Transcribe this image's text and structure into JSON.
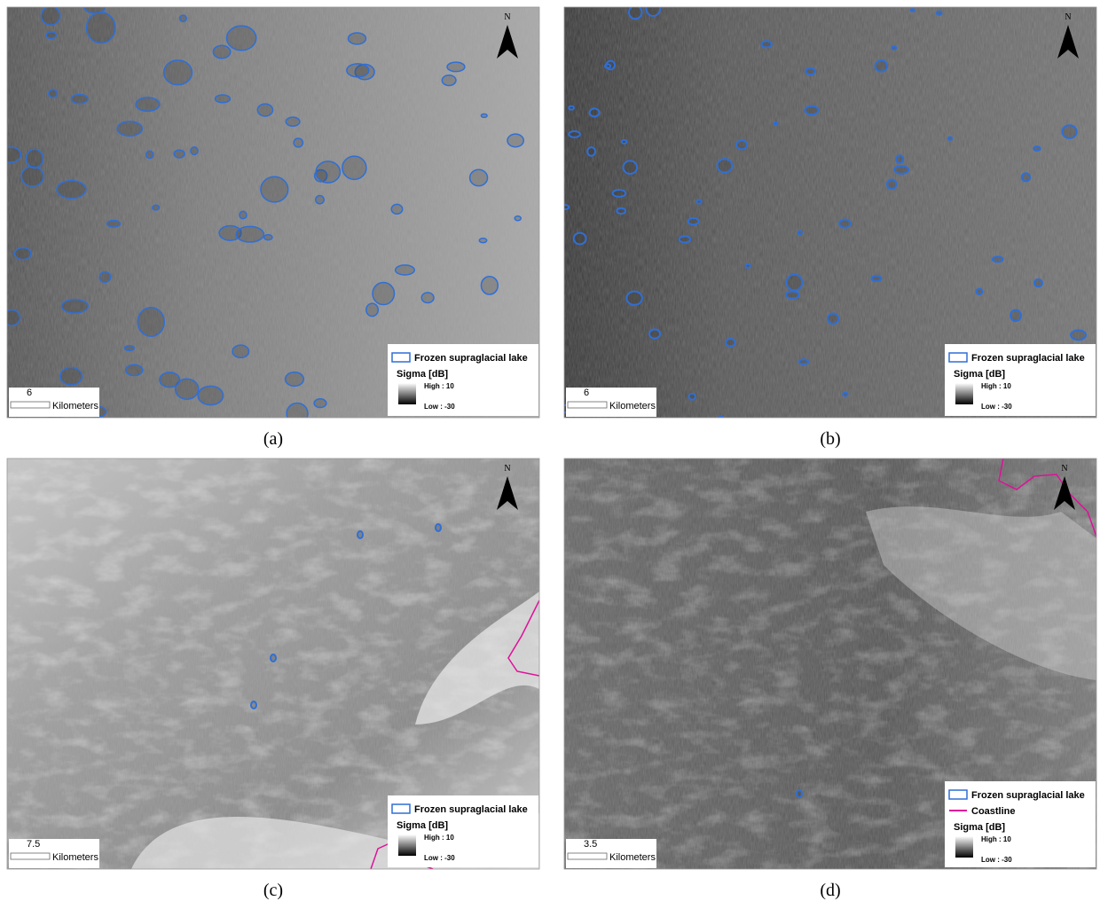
{
  "panels": [
    {
      "caption": "(a)",
      "north": "N",
      "scale": "6",
      "scale_unit": "Kilometers",
      "legend": {
        "lake": "Frozen supraglacial lake",
        "sigma": "Sigma  [dB]",
        "high": "High : 10",
        "low": "Low : -30"
      }
    },
    {
      "caption": "(b)",
      "north": "N",
      "scale": "6",
      "scale_unit": "Kilometers",
      "legend": {
        "lake": "Frozen supraglacial lake",
        "sigma": "Sigma  [dB]",
        "high": "High : 10",
        "low": "Low : -30"
      }
    },
    {
      "caption": "(c)",
      "north": "N",
      "scale": "7.5",
      "scale_unit": "Kilometers",
      "legend": {
        "lake": "Frozen supraglacial lake",
        "sigma": "Sigma  [dB]",
        "high": "High : 10",
        "low": "Low : -30"
      }
    },
    {
      "caption": "(d)",
      "north": "N",
      "scale": "3.5",
      "scale_unit": "Kilometers",
      "legend": {
        "lake": "Frozen supraglacial lake",
        "coastline": "Coastline",
        "sigma": "Sigma  [dB]",
        "high": "High : 10",
        "low": "Low : -30"
      }
    }
  ]
}
